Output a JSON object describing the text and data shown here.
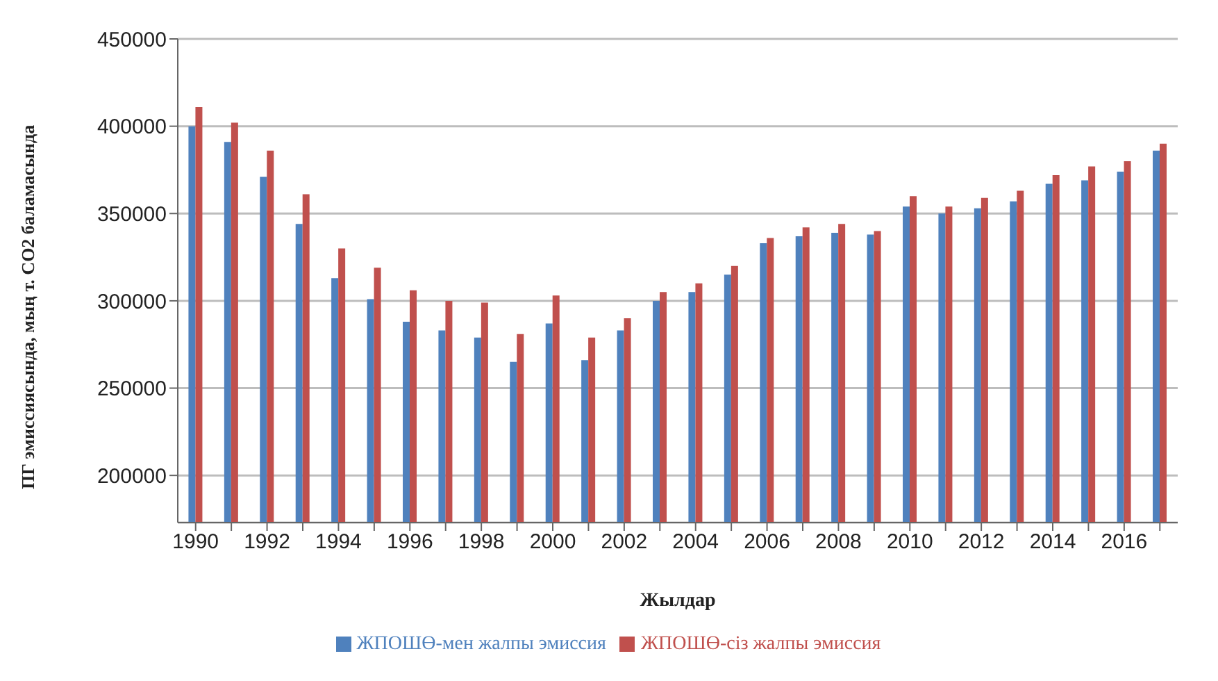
{
  "chart_data": {
    "type": "bar",
    "xlabel": "Жылдар",
    "ylabel": "ПГ эмиссиясында, мың т. CO2 баламасында",
    "categories": [
      "1990",
      null,
      "1992",
      null,
      "1994",
      null,
      "1996",
      null,
      "1998",
      null,
      "2000",
      null,
      "2002",
      null,
      "2004",
      null,
      "2006",
      null,
      "2008",
      null,
      "2010",
      null,
      "2012",
      null,
      "2014",
      null,
      "2016",
      null
    ],
    "series": [
      {
        "name": "ЖПОШӨ-мен  жалпы эмиссия",
        "color": "#4f81bd",
        "values": [
          400000,
          391000,
          371000,
          344000,
          313000,
          301000,
          288000,
          283000,
          279000,
          265000,
          287000,
          266000,
          283000,
          300000,
          305000,
          315000,
          333000,
          337000,
          339000,
          338000,
          354000,
          350000,
          353000,
          357000,
          367000,
          369000,
          374000,
          386000
        ]
      },
      {
        "name": "ЖПОШӨ-сіз жалпы эмиссия",
        "color": "#c0504d",
        "values": [
          411000,
          402000,
          386000,
          361000,
          330000,
          319000,
          306000,
          300000,
          299000,
          281000,
          303000,
          279000,
          290000,
          305000,
          310000,
          320000,
          336000,
          342000,
          344000,
          340000,
          360000,
          354000,
          359000,
          363000,
          372000,
          377000,
          380000,
          390000
        ]
      }
    ],
    "ylim": [
      173000,
      450000
    ],
    "yticks": [
      200000,
      250000,
      300000,
      350000,
      400000,
      450000
    ],
    "grid": "y",
    "legend": "bottom"
  }
}
